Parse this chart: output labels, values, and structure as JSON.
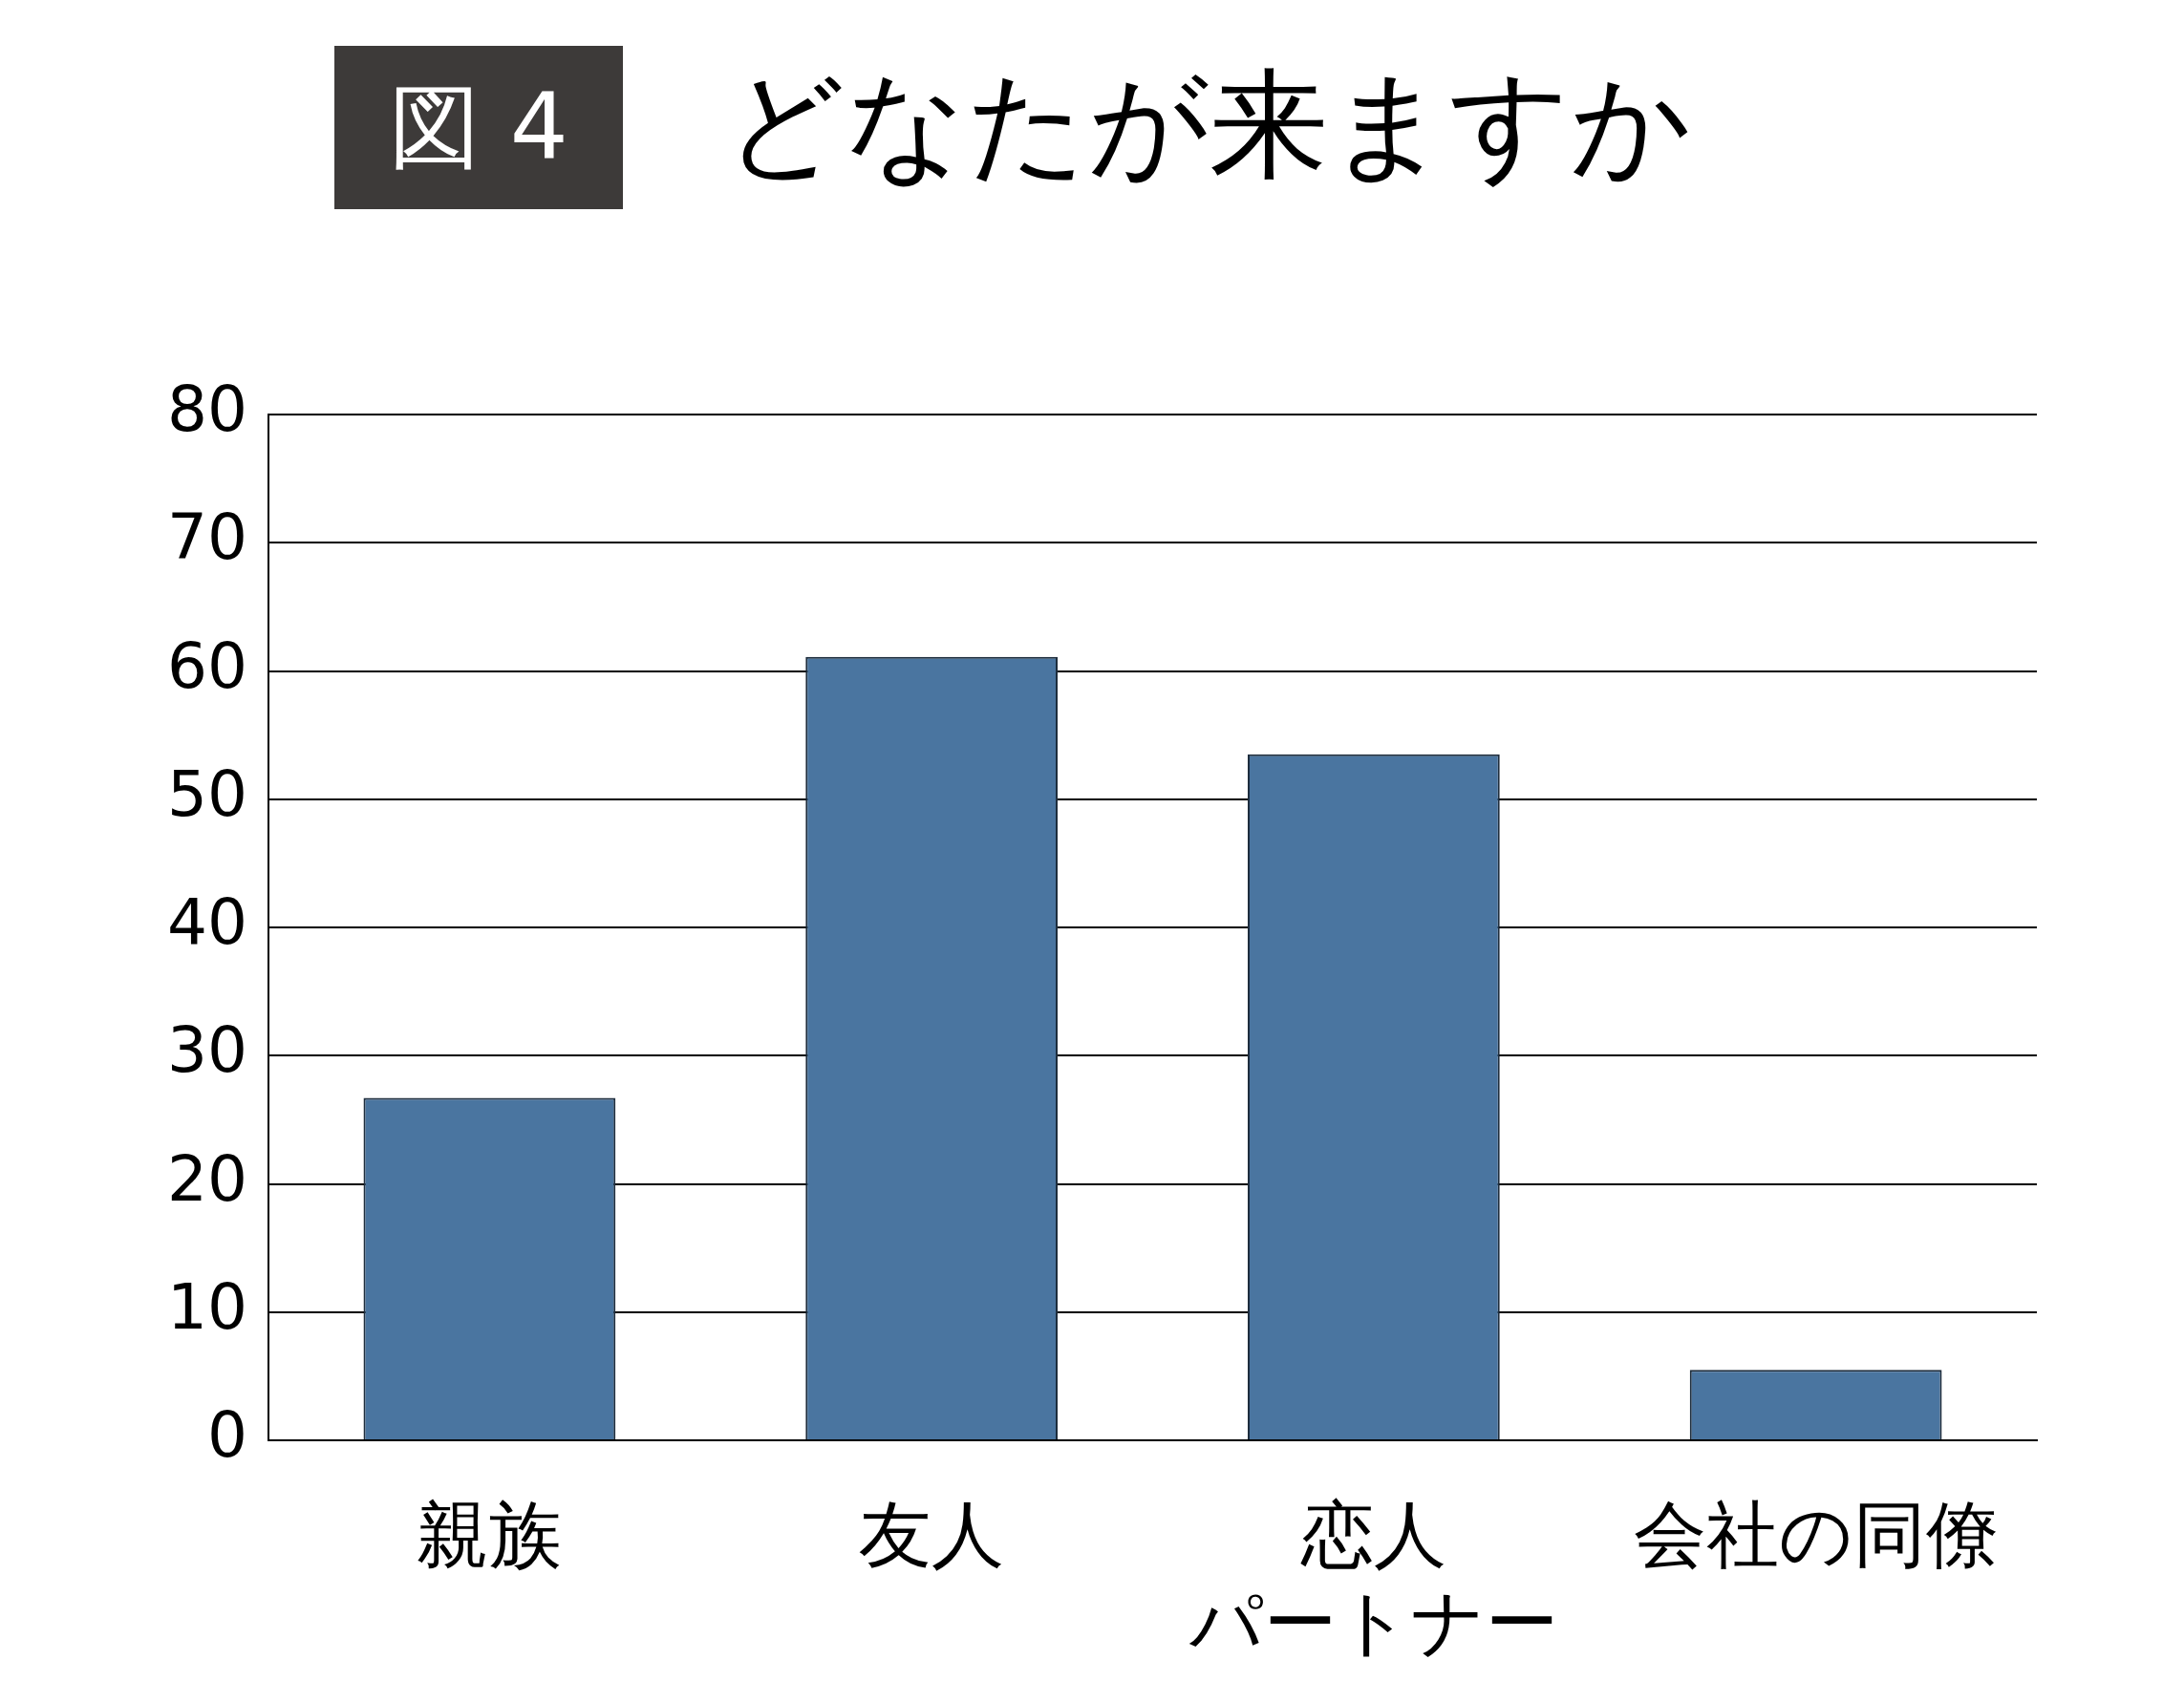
{
  "chart_data": {
    "type": "bar",
    "title": "どなたが来ますか",
    "annotations": [
      "図 4"
    ],
    "categories": [
      "親族",
      "友人",
      "恋人パートナー",
      "会社の同僚"
    ],
    "values": [
      26.7,
      61.1,
      53.5,
      5.5
    ],
    "color": "#4a75a0",
    "ylim": [
      0,
      80
    ],
    "yticks": [
      0,
      10,
      20,
      30,
      40,
      50,
      60,
      70,
      80
    ],
    "grid": "y",
    "legend": false
  }
}
